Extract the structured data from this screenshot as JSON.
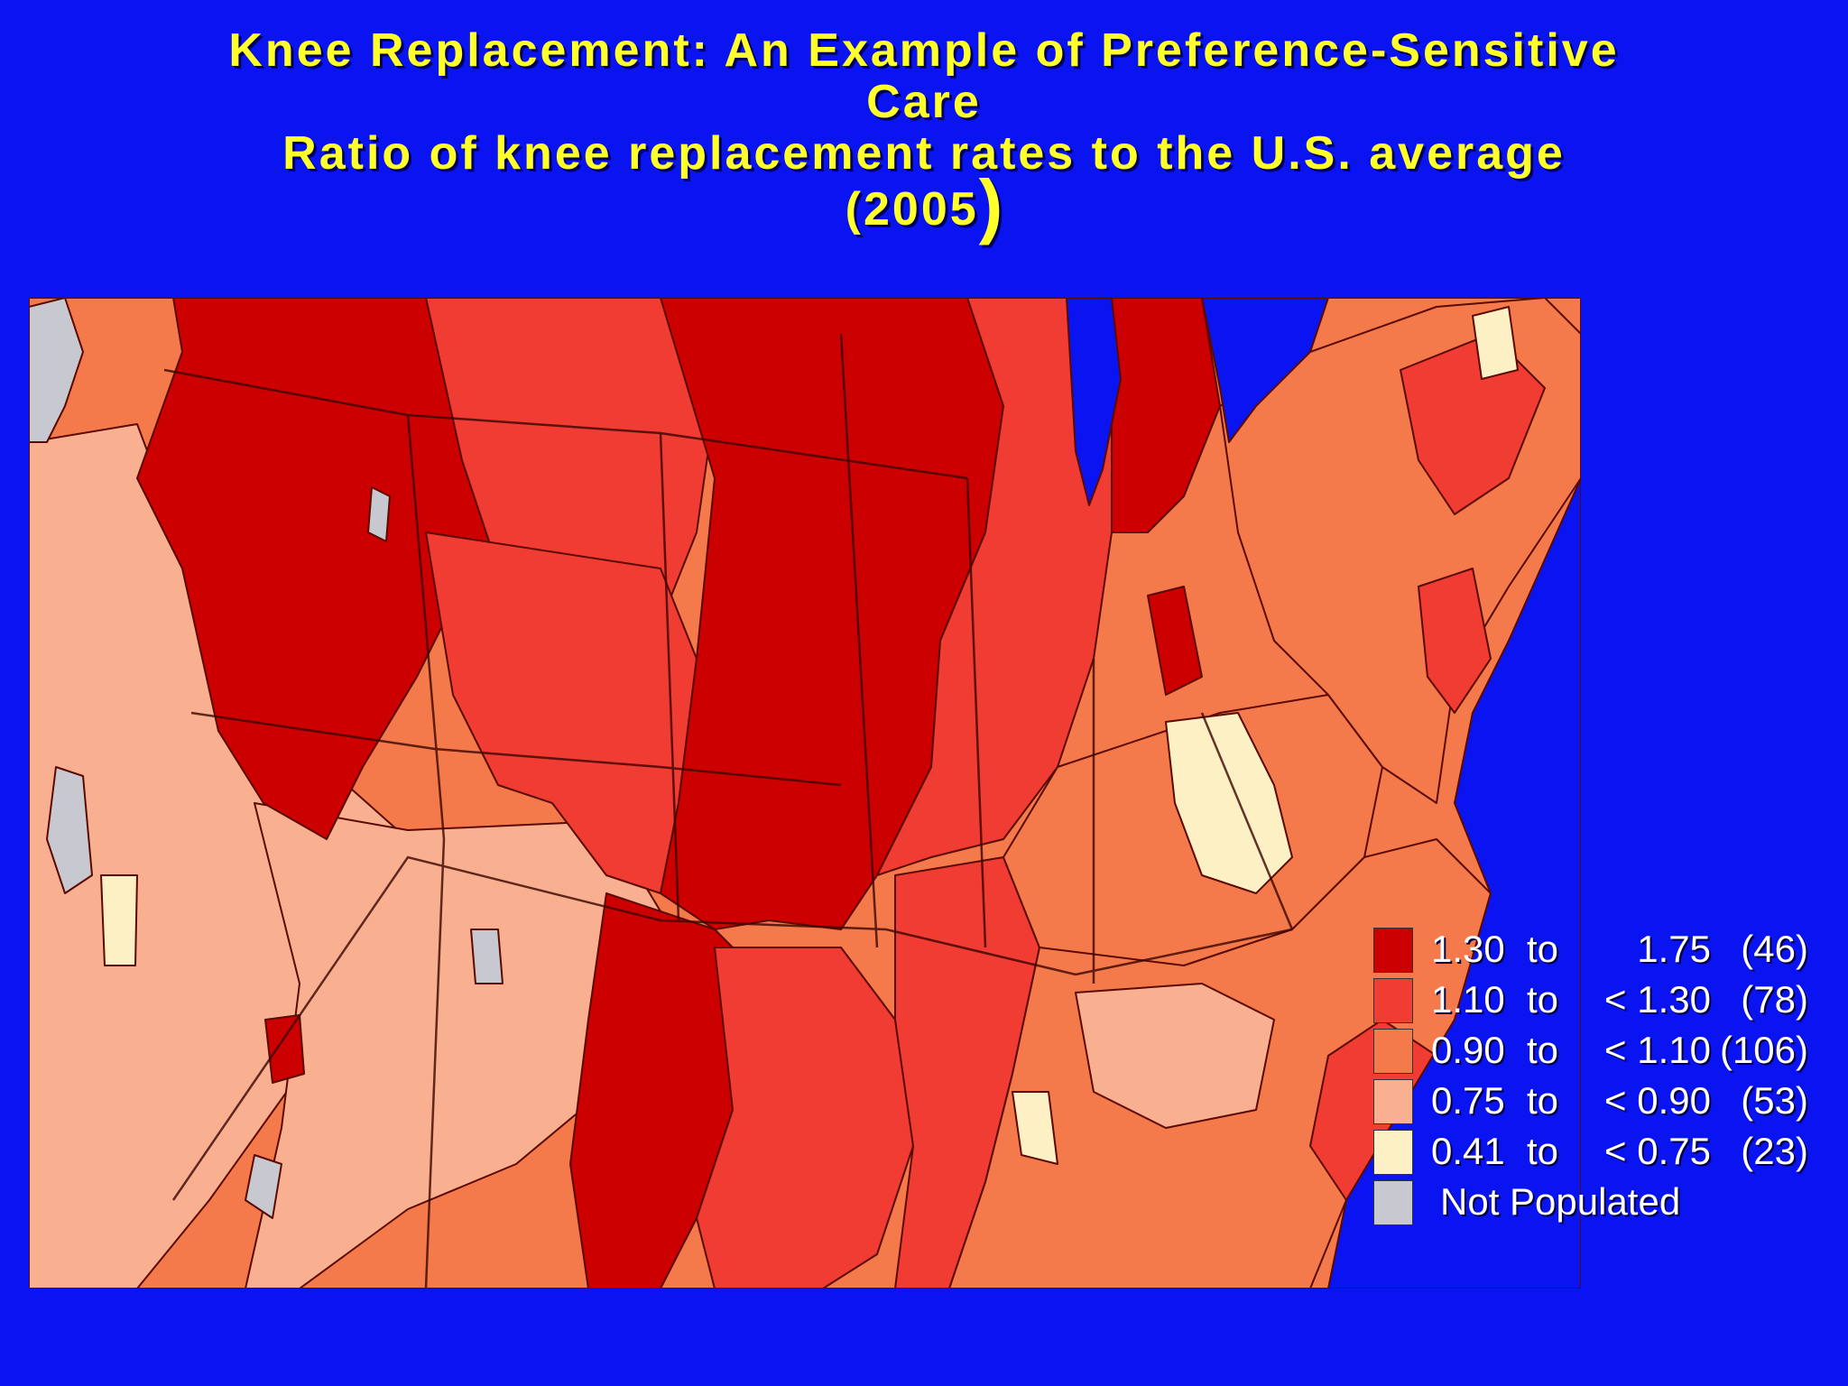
{
  "title": {
    "line1": "Knee Replacement: An Example of Preference-Sensitive",
    "line2": "Care",
    "line3": "Ratio of knee replacement rates to the U.S. average",
    "line4": "(2005",
    "paren": ")"
  },
  "colors": {
    "background": "#0a14f0",
    "title": "#ffff2a",
    "water": "#0a14f0",
    "c1": "#cc0000",
    "c2": "#f03c32",
    "c3": "#f47a4c",
    "c4": "#f9b090",
    "c5": "#fdf0c4",
    "np": "#c8c8d0"
  },
  "legend": [
    {
      "lo": "1.30",
      "to": "to",
      "hi": "1.75",
      "count": "(46)",
      "color": "#cc0000"
    },
    {
      "lo": "1.10",
      "to": "to",
      "hi": "< 1.30",
      "count": "(78)",
      "color": "#f03c32"
    },
    {
      "lo": "0.90",
      "to": "to",
      "hi": "< 1.10",
      "count": "(106)",
      "color": "#f47a4c"
    },
    {
      "lo": "0.75",
      "to": "to",
      "hi": "< 0.90",
      "count": "(53)",
      "color": "#f9b090"
    },
    {
      "lo": "0.41",
      "to": "to",
      "hi": "< 0.75",
      "count": "(23)",
      "color": "#fdf0c4"
    }
  ],
  "not_populated": {
    "label": "Not Populated",
    "color": "#c8c8d0"
  }
}
